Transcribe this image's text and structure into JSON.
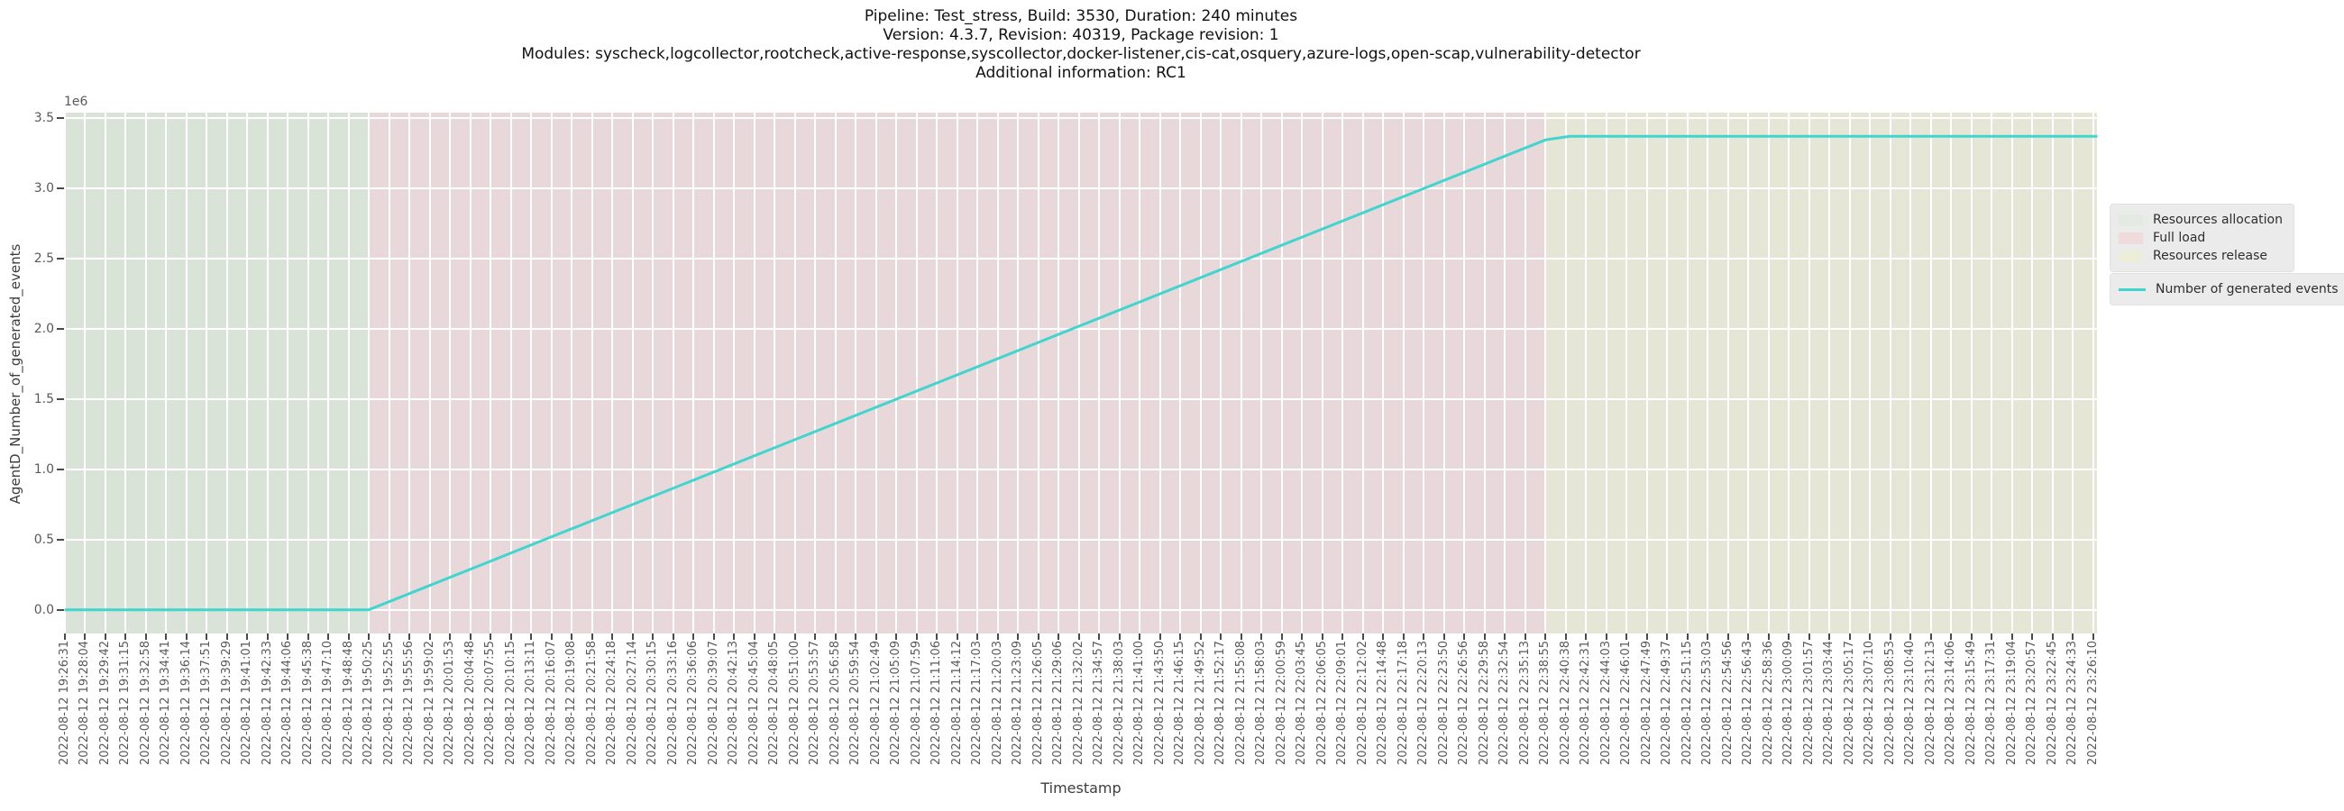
{
  "figure": {
    "title_lines": [
      "Pipeline: Test_stress, Build: 3530, Duration: 240 minutes",
      "Version: 4.3.7, Revision: 40319, Package revision: 1",
      "Modules: syscheck,logcollector,rootcheck,active-response,syscollector,docker-listener,cis-cat,osquery,azure-logs,open-scap,vulnerability-detector",
      "Additional information: RC1"
    ],
    "xlabel": "Timestamp",
    "ylabel": "AgentD_Number_of_generated_events",
    "y_offset_label": "1e6"
  },
  "legend": {
    "region_entries": [
      {
        "label": "Resources allocation",
        "patch_color": "#e2eae1"
      },
      {
        "label": "Full load",
        "patch_color": "#f0dbdb"
      },
      {
        "label": "Resources release",
        "patch_color": "#ecedd9"
      }
    ],
    "line_entry": {
      "label": "Number of generated events",
      "color": "#40d5cf"
    }
  },
  "chart_data": {
    "type": "line",
    "title": "Pipeline: Test_stress, Build: 3530, Duration: 240 minutes",
    "subtitle_lines": [
      "Version: 4.3.7, Revision: 40319, Package revision: 1",
      "Modules: syscheck,logcollector,rootcheck,active-response,syscollector,docker-listener,cis-cat,osquery,azure-logs,open-scap,vulnerability-detector",
      "Additional information: RC1"
    ],
    "xlabel": "Timestamp",
    "ylabel": "AgentD_Number_of_generated_events",
    "grid": {
      "on": true,
      "color": "#ffffff"
    },
    "legend_position": "right-outside",
    "ylim": [
      -168500,
      3538500
    ],
    "yticks": [
      0,
      500000,
      1000000,
      1500000,
      2000000,
      2500000,
      3000000,
      3500000
    ],
    "ytick_labels": [
      "0.0",
      "0.5",
      "1.0",
      "1.5",
      "2.0",
      "2.5",
      "3.0",
      "3.5"
    ],
    "y_scale_label": "1e6",
    "x_tick_labels": [
      "2022-08-12 19:26:31",
      "2022-08-12 19:28:04",
      "2022-08-12 19:29:42",
      "2022-08-12 19:31:15",
      "2022-08-12 19:32:58",
      "2022-08-12 19:34:41",
      "2022-08-12 19:36:14",
      "2022-08-12 19:37:51",
      "2022-08-12 19:39:29",
      "2022-08-12 19:41:01",
      "2022-08-12 19:42:33",
      "2022-08-12 19:44:06",
      "2022-08-12 19:45:38",
      "2022-08-12 19:47:10",
      "2022-08-12 19:48:48",
      "2022-08-12 19:50:25",
      "2022-08-12 19:52:55",
      "2022-08-12 19:55:56",
      "2022-08-12 19:59:02",
      "2022-08-12 20:01:53",
      "2022-08-12 20:04:48",
      "2022-08-12 20:07:55",
      "2022-08-12 20:10:15",
      "2022-08-12 20:13:11",
      "2022-08-12 20:16:07",
      "2022-08-12 20:19:08",
      "2022-08-12 20:21:58",
      "2022-08-12 20:24:18",
      "2022-08-12 20:27:14",
      "2022-08-12 20:30:15",
      "2022-08-12 20:33:16",
      "2022-08-12 20:36:06",
      "2022-08-12 20:39:07",
      "2022-08-12 20:42:13",
      "2022-08-12 20:45:04",
      "2022-08-12 20:48:05",
      "2022-08-12 20:51:00",
      "2022-08-12 20:53:57",
      "2022-08-12 20:56:58",
      "2022-08-12 20:59:54",
      "2022-08-12 21:02:49",
      "2022-08-12 21:05:09",
      "2022-08-12 21:07:59",
      "2022-08-12 21:11:06",
      "2022-08-12 21:14:12",
      "2022-08-12 21:17:03",
      "2022-08-12 21:20:03",
      "2022-08-12 21:23:09",
      "2022-08-12 21:26:05",
      "2022-08-12 21:29:06",
      "2022-08-12 21:32:02",
      "2022-08-12 21:34:57",
      "2022-08-12 21:38:03",
      "2022-08-12 21:41:00",
      "2022-08-12 21:43:50",
      "2022-08-12 21:46:15",
      "2022-08-12 21:49:52",
      "2022-08-12 21:52:17",
      "2022-08-12 21:55:08",
      "2022-08-12 21:58:03",
      "2022-08-12 22:00:59",
      "2022-08-12 22:03:45",
      "2022-08-12 22:06:05",
      "2022-08-12 22:09:01",
      "2022-08-12 22:12:02",
      "2022-08-12 22:14:48",
      "2022-08-12 22:17:18",
      "2022-08-12 22:20:13",
      "2022-08-12 22:23:50",
      "2022-08-12 22:26:56",
      "2022-08-12 22:29:58",
      "2022-08-12 22:32:54",
      "2022-08-12 22:35:13",
      "2022-08-12 22:38:55",
      "2022-08-12 22:40:38",
      "2022-08-12 22:42:31",
      "2022-08-12 22:44:03",
      "2022-08-12 22:46:01",
      "2022-08-12 22:47:49",
      "2022-08-12 22:49:37",
      "2022-08-12 22:51:15",
      "2022-08-12 22:53:03",
      "2022-08-12 22:54:56",
      "2022-08-12 22:56:43",
      "2022-08-12 22:58:36",
      "2022-08-12 23:00:09",
      "2022-08-12 23:01:57",
      "2022-08-12 23:03:44",
      "2022-08-12 23:05:17",
      "2022-08-12 23:07:10",
      "2022-08-12 23:08:53",
      "2022-08-12 23:10:40",
      "2022-08-12 23:12:13",
      "2022-08-12 23:14:06",
      "2022-08-12 23:15:49",
      "2022-08-12 23:17:31",
      "2022-08-12 23:19:04",
      "2022-08-12 23:20:57",
      "2022-08-12 23:22:45",
      "2022-08-12 23:24:33",
      "2022-08-12 23:26:10"
    ],
    "regions": [
      {
        "label": "Resources allocation",
        "color": "#d9e3d8",
        "start_tick": 0,
        "end_tick": 15,
        "start_time": "2022-08-12 19:26:31",
        "end_time": "2022-08-12 19:50:25"
      },
      {
        "label": "Full load",
        "color": "#e9d8da",
        "start_tick": 15,
        "end_tick": 73,
        "start_time": "2022-08-12 19:50:25",
        "end_time": "2022-08-12 22:38:55"
      },
      {
        "label": "Resources release",
        "color": "#e5e6d5",
        "start_tick": 73,
        "end_tick": 100.2,
        "start_time": "2022-08-12 22:38:55",
        "end_time": "2022-08-12 23:26:10"
      }
    ],
    "series": [
      {
        "name": "Number of generated events",
        "color": "#40d5cf",
        "points": [
          {
            "t": 0,
            "v": 0
          },
          {
            "t": 15,
            "v": 0
          },
          {
            "t": 73,
            "v": 3345000
          },
          {
            "t": 74.2,
            "v": 3370000
          },
          {
            "t": 100.2,
            "v": 3370000
          }
        ]
      }
    ]
  }
}
